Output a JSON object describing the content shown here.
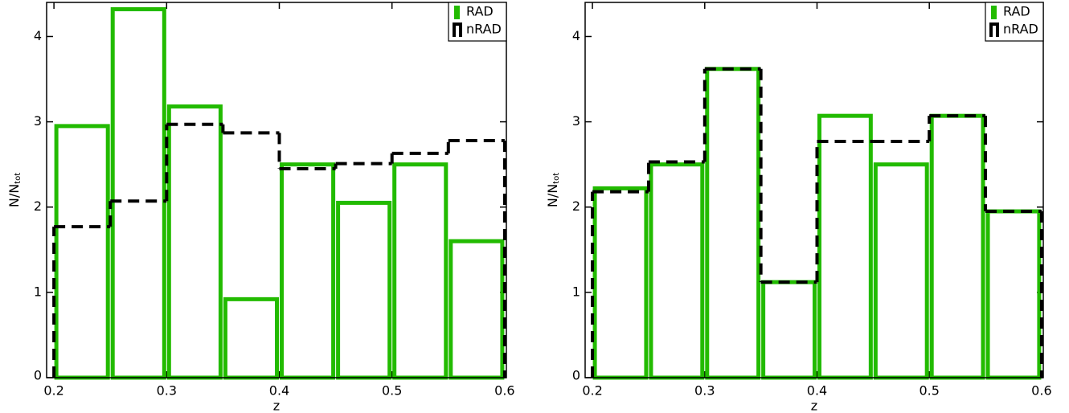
{
  "chart_data": [
    {
      "type": "histogram",
      "xlabel": "z",
      "ylabel": "N/N",
      "ylabel_sub": "tot",
      "bins": [
        0.2,
        0.25,
        0.3,
        0.35,
        0.4,
        0.45,
        0.5,
        0.55,
        0.6
      ],
      "xlim": [
        0.1935,
        0.6015
      ],
      "ylim": [
        0,
        4.4
      ],
      "xticks": [
        0.2,
        0.3,
        0.4,
        0.5,
        0.6
      ],
      "yticks": [
        0,
        1,
        2,
        3,
        4
      ],
      "legend": "upper right",
      "series": [
        {
          "name": "RAD",
          "color": "#22bb00",
          "style": "bars",
          "values": [
            2.95,
            4.32,
            3.18,
            0.92,
            2.5,
            2.05,
            2.5,
            1.6
          ]
        },
        {
          "name": "nRAD",
          "color": "#000000",
          "style": "dashed-step",
          "values": [
            1.77,
            2.07,
            2.97,
            2.87,
            2.45,
            2.51,
            2.63,
            2.78
          ]
        }
      ]
    },
    {
      "type": "histogram",
      "xlabel": "z",
      "ylabel": "N/N",
      "ylabel_sub": "tot",
      "bins": [
        0.2,
        0.25,
        0.3,
        0.35,
        0.4,
        0.45,
        0.5,
        0.55,
        0.6
      ],
      "xlim": [
        0.1935,
        0.6015
      ],
      "ylim": [
        0,
        4.4
      ],
      "xticks": [
        0.2,
        0.3,
        0.4,
        0.5,
        0.6
      ],
      "yticks": [
        0,
        1,
        2,
        3,
        4
      ],
      "legend": "upper right",
      "series": [
        {
          "name": "RAD",
          "color": "#22bb00",
          "style": "bars",
          "values": [
            2.22,
            2.5,
            3.62,
            1.12,
            3.07,
            2.5,
            3.07,
            1.95
          ]
        },
        {
          "name": "nRAD",
          "color": "#000000",
          "style": "dashed-step",
          "values": [
            2.18,
            2.53,
            3.62,
            1.12,
            2.77,
            2.77,
            3.07,
            1.95
          ]
        }
      ]
    }
  ]
}
